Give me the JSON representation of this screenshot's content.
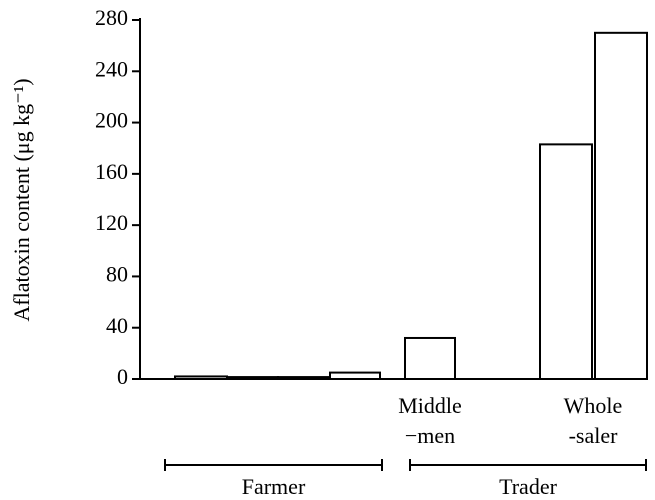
{
  "chart_data": {
    "type": "bar",
    "ylabel": "Aflatoxin content (μg kg⁻¹)",
    "categories": [
      null,
      null,
      null,
      null,
      "Middle\n−men",
      "Whole\n-saler",
      null
    ],
    "values": [
      2,
      1.5,
      1.5,
      5,
      32,
      183,
      270
    ],
    "color": "#ffffff",
    "groups": [
      "Farmer",
      "Trader"
    ],
    "ylim": [
      0,
      280
    ],
    "yticks": [
      0,
      40,
      80,
      120,
      160,
      200,
      240,
      280
    ],
    "grid": false
  }
}
